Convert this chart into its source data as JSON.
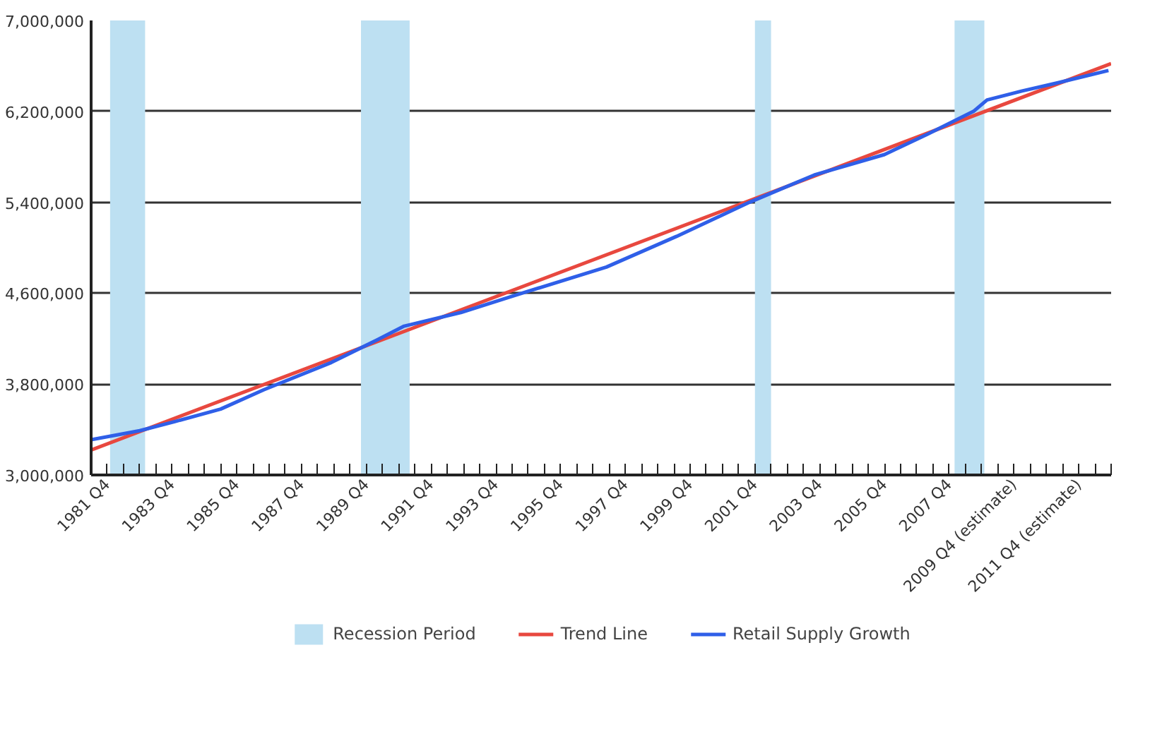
{
  "chart_data": {
    "type": "line",
    "xlim": [
      "1981-04",
      "2012-10"
    ],
    "ylim": [
      3000000,
      7000000
    ],
    "yticks": [
      {
        "value": 3000000,
        "label": "3,000,000"
      },
      {
        "value": 3800000,
        "label": "3,800,000"
      },
      {
        "value": 4600000,
        "label": "4,600,000"
      },
      {
        "value": 5400000,
        "label": "5,400,000"
      },
      {
        "value": 6200000,
        "label": "6,200,000"
      },
      {
        "value": 7000000,
        "label": "7,000,000"
      }
    ],
    "xticks": [
      {
        "value": "1981-10",
        "label": "1981 Q4"
      },
      {
        "value": "1982-04",
        "label": null
      },
      {
        "value": "1982-10",
        "label": null
      },
      {
        "value": "1983-04",
        "label": null
      },
      {
        "value": "1983-10",
        "label": "1983 Q4"
      },
      {
        "value": "1984-04",
        "label": null
      },
      {
        "value": "1984-10",
        "label": null
      },
      {
        "value": "1985-04",
        "label": null
      },
      {
        "value": "1985-10",
        "label": "1985 Q4"
      },
      {
        "value": "1986-04",
        "label": null
      },
      {
        "value": "1986-10",
        "label": null
      },
      {
        "value": "1987-04",
        "label": null
      },
      {
        "value": "1987-10",
        "label": "1987 Q4"
      },
      {
        "value": "1988-04",
        "label": null
      },
      {
        "value": "1988-10",
        "label": null
      },
      {
        "value": "1989-04",
        "label": null
      },
      {
        "value": "1989-10",
        "label": "1989 Q4"
      },
      {
        "value": "1990-04",
        "label": null
      },
      {
        "value": "1990-10",
        "label": null
      },
      {
        "value": "1991-04",
        "label": null
      },
      {
        "value": "1991-10",
        "label": "1991 Q4"
      },
      {
        "value": "1992-04",
        "label": null
      },
      {
        "value": "1992-10",
        "label": null
      },
      {
        "value": "1993-04",
        "label": null
      },
      {
        "value": "1993-10",
        "label": "1993 Q4"
      },
      {
        "value": "1994-04",
        "label": null
      },
      {
        "value": "1994-10",
        "label": null
      },
      {
        "value": "1995-04",
        "label": null
      },
      {
        "value": "1995-10",
        "label": "1995 Q4"
      },
      {
        "value": "1996-04",
        "label": null
      },
      {
        "value": "1996-10",
        "label": null
      },
      {
        "value": "1997-04",
        "label": null
      },
      {
        "value": "1997-10",
        "label": "1997 Q4"
      },
      {
        "value": "1998-04",
        "label": null
      },
      {
        "value": "1998-10",
        "label": null
      },
      {
        "value": "1999-04",
        "label": null
      },
      {
        "value": "1999-10",
        "label": "1999 Q4"
      },
      {
        "value": "2000-04",
        "label": null
      },
      {
        "value": "2000-10",
        "label": null
      },
      {
        "value": "2001-04",
        "label": null
      },
      {
        "value": "2001-10",
        "label": "2001 Q4"
      },
      {
        "value": "2002-04",
        "label": null
      },
      {
        "value": "2002-10",
        "label": null
      },
      {
        "value": "2003-04",
        "label": null
      },
      {
        "value": "2003-10",
        "label": "2003 Q4"
      },
      {
        "value": "2004-04",
        "label": null
      },
      {
        "value": "2004-10",
        "label": null
      },
      {
        "value": "2005-04",
        "label": null
      },
      {
        "value": "2005-10",
        "label": "2005 Q4"
      },
      {
        "value": "2006-04",
        "label": null
      },
      {
        "value": "2006-10",
        "label": null
      },
      {
        "value": "2007-04",
        "label": null
      },
      {
        "value": "2007-10",
        "label": "2007 Q4"
      },
      {
        "value": "2008-04",
        "label": null
      },
      {
        "value": "2008-10",
        "label": null
      },
      {
        "value": "2009-04",
        "label": null
      },
      {
        "value": "2009-10",
        "label": "2009 Q4 (estimate)"
      },
      {
        "value": "2010-04",
        "label": null
      },
      {
        "value": "2010-10",
        "label": null
      },
      {
        "value": "2011-04",
        "label": null
      },
      {
        "value": "2011-10",
        "label": "2011 Q4 (estimate)"
      },
      {
        "value": "2012-04",
        "label": null
      },
      {
        "value": "2012-10",
        "label": null
      }
    ],
    "grid": "y",
    "legend": "bottom",
    "bands": [
      {
        "axis": "x",
        "from": "1981-11",
        "to": "1982-12",
        "label": "Recession Period",
        "color": "#bde0f2"
      },
      {
        "axis": "x",
        "from": "1989-08",
        "to": "1991-02",
        "color": "#bde0f2"
      },
      {
        "axis": "x",
        "from": "2001-10",
        "to": "2002-04",
        "color": "#bde0f2"
      },
      {
        "axis": "x",
        "from": "2007-12",
        "to": "2008-11",
        "color": "#bde0f2"
      }
    ],
    "series": [
      {
        "name": "Trend Line",
        "color": "#e8483f",
        "x": [
          "1981-04",
          "2012-10"
        ],
        "values": [
          3220000,
          6620000
        ]
      },
      {
        "name": "Retail Supply Growth",
        "color": "#2f5fe8",
        "x": [
          "1981-04",
          "1982-10",
          "1983-11",
          "1985-04",
          "1986-08",
          "1988-09",
          "1990-02",
          "1990-12",
          "1992-09",
          "1994-05",
          "1997-03",
          "1999-05",
          "2001-08",
          "2003-08",
          "2005-10",
          "2007-02",
          "2008-07",
          "2008-12",
          "2010-01",
          "2011-02",
          "2012-09"
        ],
        "values": [
          3310000,
          3390000,
          3470000,
          3580000,
          3750000,
          3990000,
          4190000,
          4310000,
          4430000,
          4580000,
          4830000,
          5100000,
          5400000,
          5640000,
          5820000,
          6000000,
          6200000,
          6300000,
          6380000,
          6450000,
          6560000
        ]
      }
    ]
  }
}
